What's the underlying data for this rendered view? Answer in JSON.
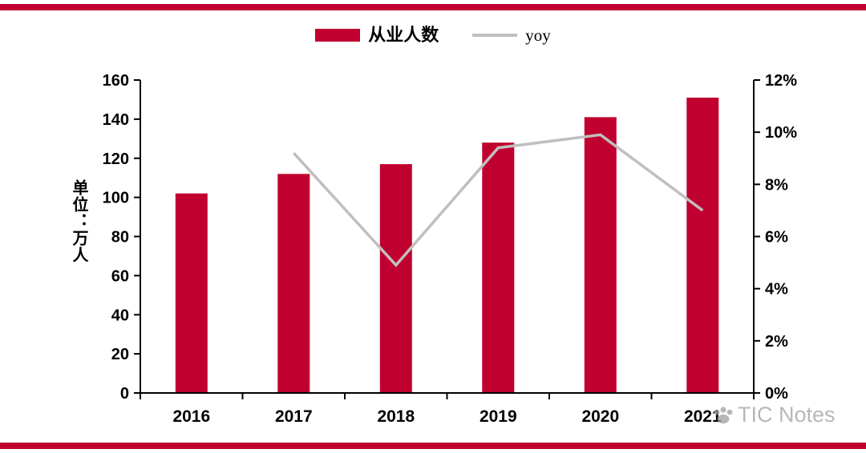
{
  "chart_data": {
    "type": "bar",
    "combo": "bar+line",
    "title": "",
    "categories": [
      "2016",
      "2017",
      "2018",
      "2019",
      "2020",
      "2021"
    ],
    "series": [
      {
        "name": "从业人数",
        "type": "bar",
        "axis": "left",
        "color": "#c0002f",
        "values": [
          102,
          112,
          117,
          128,
          141,
          151
        ]
      },
      {
        "name": "yoy",
        "type": "line",
        "axis": "right",
        "color": "#bfbfbf",
        "values": [
          null,
          9.2,
          4.9,
          9.4,
          9.9,
          7.0
        ]
      }
    ],
    "left_axis": {
      "label": "单位：万人",
      "min": 0,
      "max": 160,
      "step": 20,
      "ticks": [
        0,
        20,
        40,
        60,
        80,
        100,
        120,
        140,
        160
      ]
    },
    "right_axis": {
      "min": 0,
      "max": 12,
      "step": 2,
      "suffix": "%",
      "ticks": [
        "0%",
        "2%",
        "4%",
        "6%",
        "8%",
        "10%",
        "12%"
      ]
    },
    "legend_position": "top",
    "grid": false
  },
  "legend": {
    "items": [
      {
        "label": "从业人数",
        "swatch": "bar",
        "color": "#c0002f"
      },
      {
        "label": "yoy",
        "swatch": "line",
        "color": "#bfbfbf"
      }
    ]
  },
  "watermark": {
    "text": "TIC Notes",
    "icon": "paw-icon"
  },
  "decor": {
    "accent_color": "#c0002f",
    "line_gray": "#bfbfbf"
  }
}
